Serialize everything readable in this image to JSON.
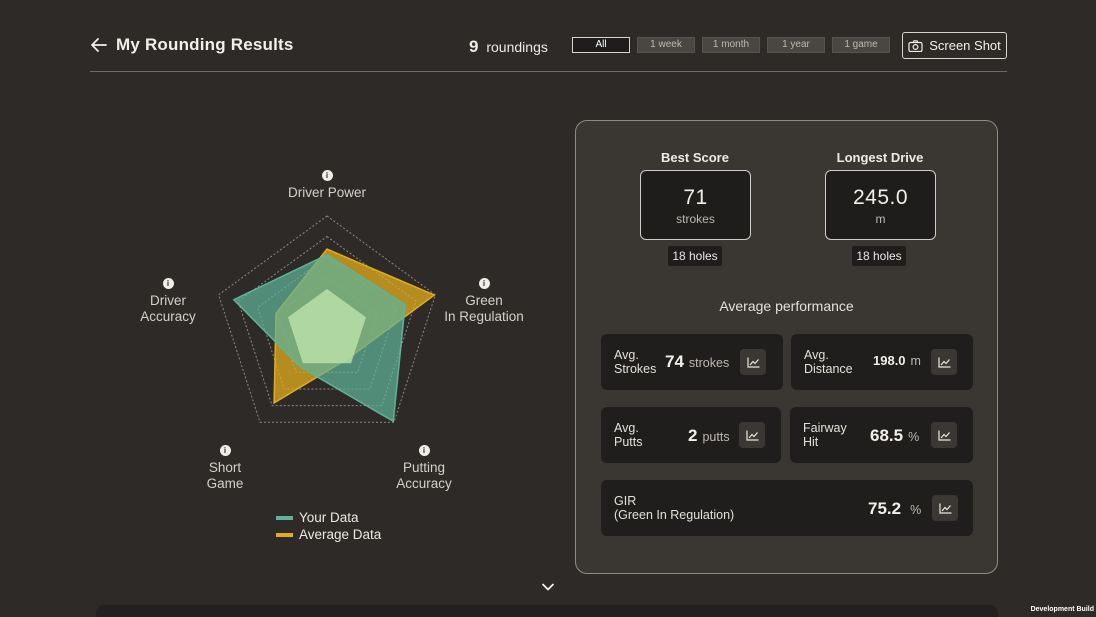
{
  "header": {
    "title": "My Rounding Results",
    "count_value": "9",
    "count_label": "roundings",
    "filters": [
      {
        "label": "All",
        "active": true
      },
      {
        "label": "1 week",
        "active": false
      },
      {
        "label": "1 month",
        "active": false
      },
      {
        "label": "1 year",
        "active": false
      },
      {
        "label": "1 game",
        "active": false
      }
    ],
    "screenshot_label": "Screen Shot"
  },
  "radar": {
    "axes": {
      "driver_power": "Driver Power",
      "green_line1": "Green",
      "green_line2": "In Regulation",
      "putting_line1": "Putting",
      "putting_line2": "Accuracy",
      "short_line1": "Short",
      "short_line2": "Game",
      "driver_acc_line1": "Driver",
      "driver_acc_line2": "Accuracy"
    },
    "info_glyph": "i",
    "your_data": [
      0.66,
      0.72,
      0.99,
      0.4,
      0.86
    ],
    "average_data": [
      0.71,
      0.99,
      0.31,
      0.79,
      0.47
    ],
    "colors": {
      "your": "#5fb39a",
      "average": "#e3ad1f",
      "core": "#b9dfa9"
    }
  },
  "legend": {
    "your_label": "Your Data",
    "average_label": "Average Data"
  },
  "best_score": {
    "heading": "Best Score",
    "value": "71",
    "unit": "strokes",
    "holes": "18 holes"
  },
  "longest_drive": {
    "heading": "Longest Drive",
    "value": "245.0",
    "unit": "m",
    "holes": "18 holes"
  },
  "average": {
    "title": "Average performance",
    "strokes": {
      "label1": "Avg.",
      "label2": "Strokes",
      "value": "74",
      "unit": "strokes"
    },
    "distance": {
      "label1": "Avg.",
      "label2": "Distance",
      "value": "198.0",
      "unit": "m"
    },
    "putts": {
      "label1": "Avg.",
      "label2": "Putts",
      "value": "2",
      "unit": "putts"
    },
    "fairway": {
      "label1": "Fairway",
      "label2": "Hit",
      "value": "68.5",
      "unit": "%"
    },
    "gir": {
      "label1": "GIR",
      "label2": "(Green In Regulation)",
      "value": "75.2",
      "unit": "%"
    }
  },
  "footer": {
    "dev_build": "Development Build"
  }
}
